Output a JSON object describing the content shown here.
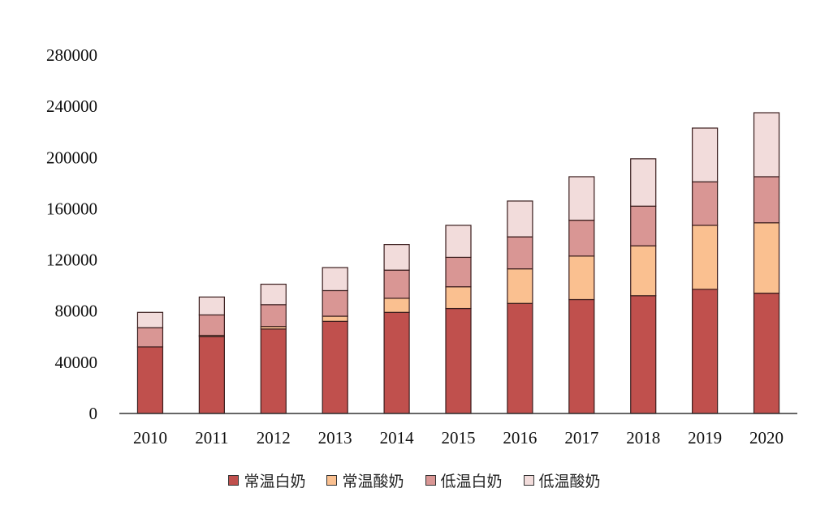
{
  "chart_data": {
    "type": "bar",
    "stacked": true,
    "title": "",
    "xlabel": "",
    "ylabel": "",
    "categories": [
      "2010",
      "2011",
      "2012",
      "2013",
      "2014",
      "2015",
      "2016",
      "2017",
      "2018",
      "2019",
      "2020"
    ],
    "series": [
      {
        "name": "常温白奶",
        "color": "#c0504d",
        "values": [
          52000,
          60000,
          66000,
          72000,
          79000,
          82000,
          86000,
          89000,
          92000,
          97000,
          94000
        ]
      },
      {
        "name": "常温酸奶",
        "color": "#fac090",
        "values": [
          0,
          1000,
          2000,
          4000,
          11000,
          17000,
          27000,
          34000,
          39000,
          50000,
          55000
        ]
      },
      {
        "name": "低温白奶",
        "color": "#d99694",
        "values": [
          15000,
          16000,
          17000,
          20000,
          22000,
          23000,
          25000,
          28000,
          31000,
          34000,
          36000
        ]
      },
      {
        "name": "低温酸奶",
        "color": "#f2dcdb",
        "values": [
          12000,
          14000,
          16000,
          18000,
          20000,
          25000,
          28000,
          34000,
          37000,
          42000,
          50000
        ]
      }
    ],
    "ylim": [
      0,
      280000
    ],
    "yticks": [
      0,
      40000,
      80000,
      120000,
      160000,
      200000,
      240000,
      280000
    ],
    "grid": false,
    "legend_position": "bottom"
  }
}
